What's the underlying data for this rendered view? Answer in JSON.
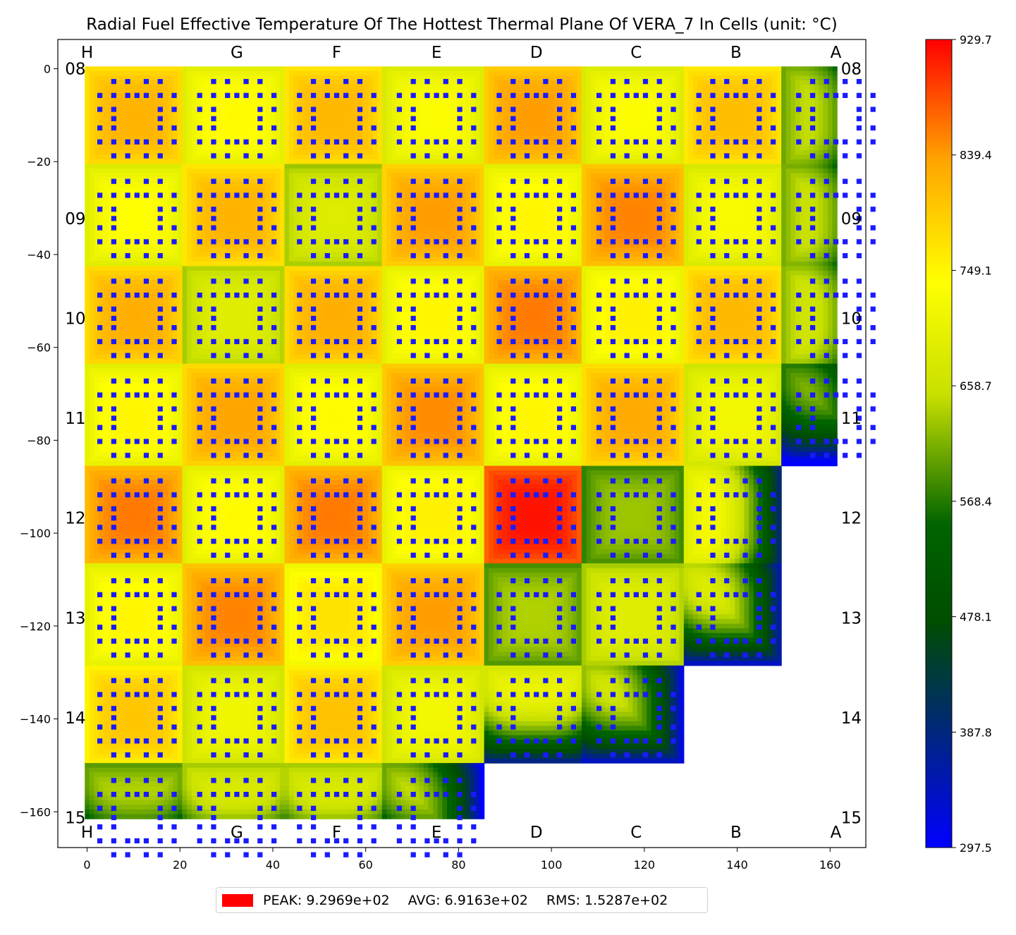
{
  "chart_data": {
    "type": "heatmap",
    "title": "Radial Fuel Effective Temperature Of The Hottest Thermal Plane Of VERA_7 In Cells (unit: °C)",
    "x_ticks": [
      0,
      20,
      40,
      60,
      80,
      100,
      120,
      140,
      160
    ],
    "y_ticks": [
      0,
      -20,
      -40,
      -60,
      -80,
      -100,
      -120,
      -140,
      -160
    ],
    "xlim": [
      -6.3,
      167.7
    ],
    "ylim": [
      -167.7,
      6.3
    ],
    "column_labels": [
      "H",
      "G",
      "F",
      "E",
      "D",
      "C",
      "B",
      "A"
    ],
    "row_labels": [
      "08",
      "09",
      "10",
      "11",
      "12",
      "13",
      "14",
      "15"
    ],
    "colorbar": {
      "min": 297.5,
      "max": 929.7,
      "ticks": [
        "929.7",
        "839.4",
        "749.1",
        "658.7",
        "568.4",
        "478.1",
        "387.8",
        "297.5"
      ],
      "colors": [
        "#0000ff",
        "#004d00",
        "#006400",
        "#c8e000",
        "#ffff00",
        "#ffa500",
        "#ff0000"
      ]
    },
    "pin_color": "#1a1aff",
    "assembly_rows_in_core": [
      8,
      8,
      8,
      8,
      7,
      7,
      6,
      4
    ],
    "assembly_temps": [
      [
        820,
        745,
        815,
        735,
        840,
        735,
        810,
        660
      ],
      [
        740,
        820,
        685,
        840,
        750,
        855,
        730,
        665
      ],
      [
        825,
        690,
        825,
        750,
        860,
        755,
        815,
        675
      ],
      [
        750,
        835,
        745,
        850,
        750,
        830,
        720,
        625
      ],
      [
        860,
        745,
        860,
        755,
        920,
        630,
        735
      ],
      [
        750,
        855,
        770,
        840,
        640,
        690,
        700
      ],
      [
        800,
        715,
        805,
        720,
        720,
        680
      ],
      [
        650,
        690,
        690,
        660
      ]
    ],
    "summary": {
      "peak_color": "#ff0000",
      "peak": "PEAK: 9.2969e+02",
      "avg": "AVG: 6.9163e+02",
      "rms": "RMS: 1.5287e+02"
    }
  }
}
